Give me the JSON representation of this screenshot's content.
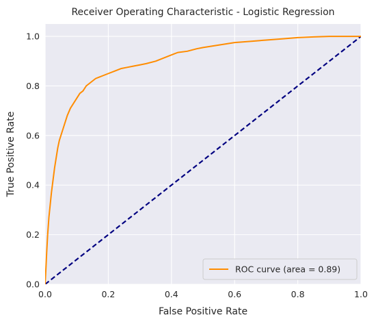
{
  "chart_data": {
    "type": "line",
    "title": "Receiver Operating Characteristic - Logistic Regression",
    "xlabel": "False Positive Rate",
    "ylabel": "True Positive Rate",
    "xlim": [
      0.0,
      1.0
    ],
    "ylim": [
      0.0,
      1.05
    ],
    "x_ticks": [
      "0.0",
      "0.2",
      "0.4",
      "0.6",
      "0.8",
      "1.0"
    ],
    "y_ticks": [
      "0.0",
      "0.2",
      "0.4",
      "0.6",
      "0.8",
      "1.0"
    ],
    "grid": true,
    "legend_position": "lower-right",
    "colors": {
      "background": "#eaeaf2",
      "grid": "#ffffff",
      "roc": "#ff8c00",
      "diagonal": "#000080"
    },
    "series": [
      {
        "name": "ROC curve (area = 0.89)",
        "style": "solid",
        "x": [
          0.0,
          0.002,
          0.005,
          0.008,
          0.012,
          0.016,
          0.02,
          0.025,
          0.03,
          0.035,
          0.04,
          0.045,
          0.05,
          0.055,
          0.06,
          0.065,
          0.07,
          0.08,
          0.09,
          0.1,
          0.11,
          0.12,
          0.13,
          0.14,
          0.15,
          0.16,
          0.17,
          0.18,
          0.2,
          0.22,
          0.24,
          0.26,
          0.28,
          0.3,
          0.32,
          0.35,
          0.38,
          0.4,
          0.42,
          0.45,
          0.48,
          0.5,
          0.55,
          0.6,
          0.65,
          0.7,
          0.75,
          0.8,
          0.85,
          0.9,
          0.95,
          1.0
        ],
        "y": [
          0.0,
          0.05,
          0.13,
          0.2,
          0.27,
          0.32,
          0.37,
          0.42,
          0.47,
          0.51,
          0.55,
          0.58,
          0.6,
          0.62,
          0.64,
          0.66,
          0.68,
          0.71,
          0.73,
          0.75,
          0.77,
          0.78,
          0.8,
          0.81,
          0.82,
          0.83,
          0.835,
          0.84,
          0.85,
          0.86,
          0.87,
          0.875,
          0.88,
          0.885,
          0.89,
          0.9,
          0.915,
          0.925,
          0.935,
          0.94,
          0.95,
          0.955,
          0.965,
          0.975,
          0.98,
          0.985,
          0.99,
          0.995,
          0.998,
          1.0,
          1.0,
          1.0
        ]
      },
      {
        "name": "",
        "style": "dashed",
        "x": [
          0.0,
          1.0
        ],
        "y": [
          0.0,
          1.0
        ]
      }
    ]
  }
}
